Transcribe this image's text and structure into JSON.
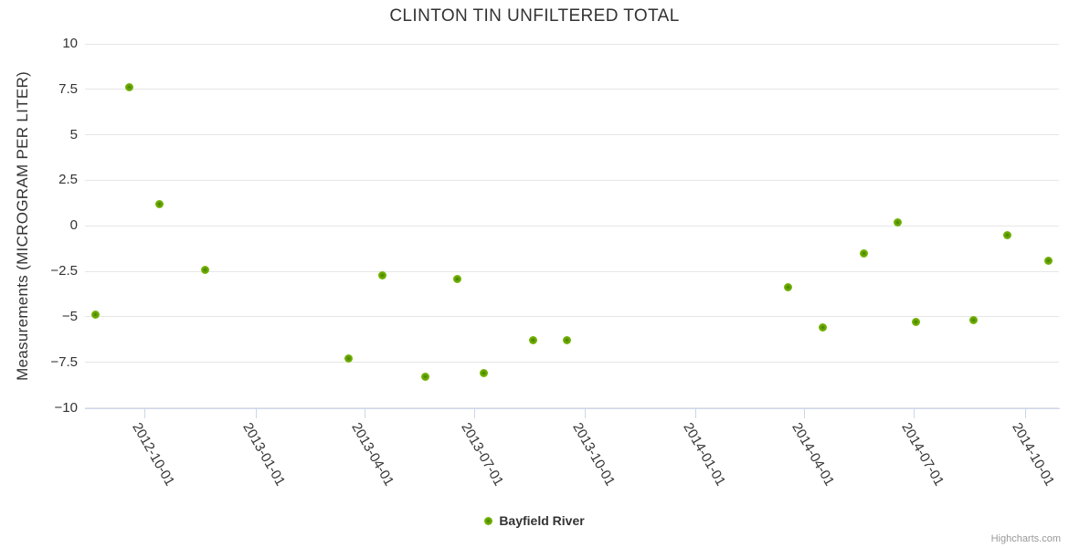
{
  "title": "CLINTON TIN UNFILTERED TOTAL",
  "legend": {
    "label": "Bayfield River"
  },
  "credits": {
    "label": "Highcharts.com"
  },
  "colors": {
    "marker_green": "#74b100",
    "text": "#333333",
    "gridline": "#e6e6e6",
    "axis_line": "#ccd6eb",
    "credits_text": "#999999"
  },
  "chart_data": {
    "type": "scatter",
    "title": "CLINTON TIN UNFILTERED TOTAL",
    "xlabel": "",
    "ylabel": "Measurements (MICROGRAM PER LITER)",
    "ylim": [
      -10,
      10
    ],
    "yticks": [
      10,
      7.5,
      5,
      2.5,
      0,
      -2.5,
      -5,
      -7.5,
      -10
    ],
    "xlim": [
      "2012-08-12",
      "2014-10-29"
    ],
    "xticks": [
      "2012-10-01",
      "2013-01-01",
      "2013-04-01",
      "2013-07-01",
      "2013-10-01",
      "2014-01-01",
      "2014-04-01",
      "2014-07-01",
      "2014-10-01"
    ],
    "grid": true,
    "legend_position": "bottom-center",
    "series": [
      {
        "name": "Bayfield River",
        "color": "#74b100",
        "points": [
          {
            "x": "2012-08-21",
            "y": -4.9
          },
          {
            "x": "2012-09-18",
            "y": 7.6
          },
          {
            "x": "2012-10-13",
            "y": 1.2
          },
          {
            "x": "2012-11-20",
            "y": -2.4
          },
          {
            "x": "2013-03-19",
            "y": -7.3
          },
          {
            "x": "2013-04-16",
            "y": -2.7
          },
          {
            "x": "2013-05-21",
            "y": -8.3
          },
          {
            "x": "2013-06-17",
            "y": -2.9
          },
          {
            "x": "2013-07-09",
            "y": -8.1
          },
          {
            "x": "2013-08-19",
            "y": -6.3
          },
          {
            "x": "2013-09-16",
            "y": -6.3
          },
          {
            "x": "2014-03-18",
            "y": -3.4
          },
          {
            "x": "2014-04-16",
            "y": -5.6
          },
          {
            "x": "2014-05-20",
            "y": -1.5
          },
          {
            "x": "2014-06-17",
            "y": 0.2
          },
          {
            "x": "2014-07-02",
            "y": -5.3
          },
          {
            "x": "2014-08-19",
            "y": -5.2
          },
          {
            "x": "2014-09-16",
            "y": -0.5
          },
          {
            "x": "2014-10-20",
            "y": -1.9
          }
        ]
      }
    ]
  }
}
